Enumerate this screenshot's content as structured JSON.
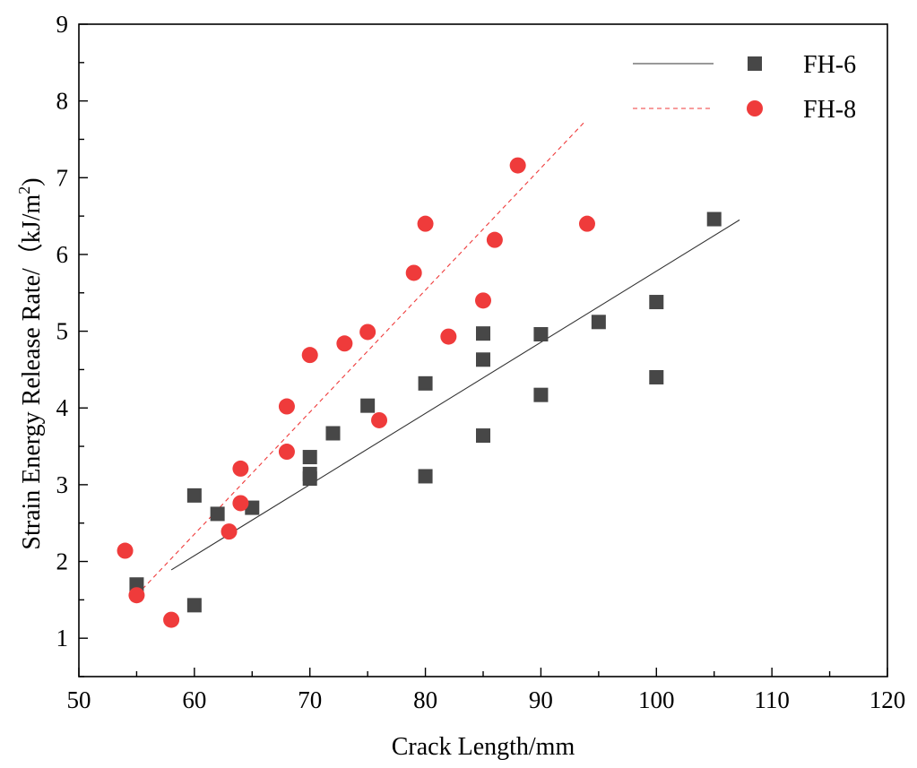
{
  "chart_data": {
    "type": "scatter",
    "title": "",
    "xlabel": "Crack Length/mm",
    "ylabel": "Strain Energy Release Rate/（kJ/m",
    "ylabel_superscript": "2",
    "ylabel_close": ")",
    "xlim": [
      50,
      120
    ],
    "ylim": [
      0.5,
      9
    ],
    "xticks": [
      50,
      60,
      70,
      80,
      90,
      100,
      110,
      120
    ],
    "yticks": [
      1,
      2,
      3,
      4,
      5,
      6,
      7,
      8,
      9
    ],
    "legend_position": "top-right",
    "series": [
      {
        "name": "FH-6",
        "marker": "square",
        "color": "#474747",
        "points": [
          [
            55,
            1.7
          ],
          [
            60,
            1.43
          ],
          [
            60,
            2.86
          ],
          [
            62,
            2.62
          ],
          [
            65,
            2.7
          ],
          [
            70,
            3.08
          ],
          [
            70,
            3.14
          ],
          [
            70,
            3.36
          ],
          [
            72,
            3.67
          ],
          [
            75,
            4.03
          ],
          [
            80,
            3.11
          ],
          [
            80,
            4.32
          ],
          [
            85,
            3.64
          ],
          [
            85,
            4.63
          ],
          [
            85,
            4.97
          ],
          [
            90,
            4.17
          ],
          [
            90,
            4.96
          ],
          [
            95,
            5.12
          ],
          [
            100,
            4.4
          ],
          [
            100,
            5.38
          ],
          [
            105,
            6.46
          ]
        ],
        "fit": {
          "style": "solid",
          "color": "#333333",
          "x": [
            58,
            107.2
          ],
          "y": [
            1.89,
            6.45
          ]
        }
      },
      {
        "name": "FH-8",
        "marker": "circle",
        "color": "#ef3b3b",
        "points": [
          [
            54,
            2.14
          ],
          [
            55,
            1.56
          ],
          [
            58,
            1.24
          ],
          [
            63,
            2.39
          ],
          [
            64,
            2.76
          ],
          [
            64,
            3.21
          ],
          [
            68,
            3.43
          ],
          [
            68,
            4.02
          ],
          [
            70,
            4.69
          ],
          [
            73,
            4.84
          ],
          [
            75,
            4.99
          ],
          [
            76,
            3.84
          ],
          [
            79,
            5.76
          ],
          [
            80,
            6.4
          ],
          [
            82,
            4.93
          ],
          [
            85,
            5.4
          ],
          [
            86,
            6.19
          ],
          [
            88,
            7.16
          ],
          [
            94,
            6.4
          ]
        ],
        "fit": {
          "style": "dashed",
          "color": "#ef3b3b",
          "x": [
            55.5,
            93.8
          ],
          "y": [
            1.64,
            7.73
          ]
        }
      }
    ]
  }
}
